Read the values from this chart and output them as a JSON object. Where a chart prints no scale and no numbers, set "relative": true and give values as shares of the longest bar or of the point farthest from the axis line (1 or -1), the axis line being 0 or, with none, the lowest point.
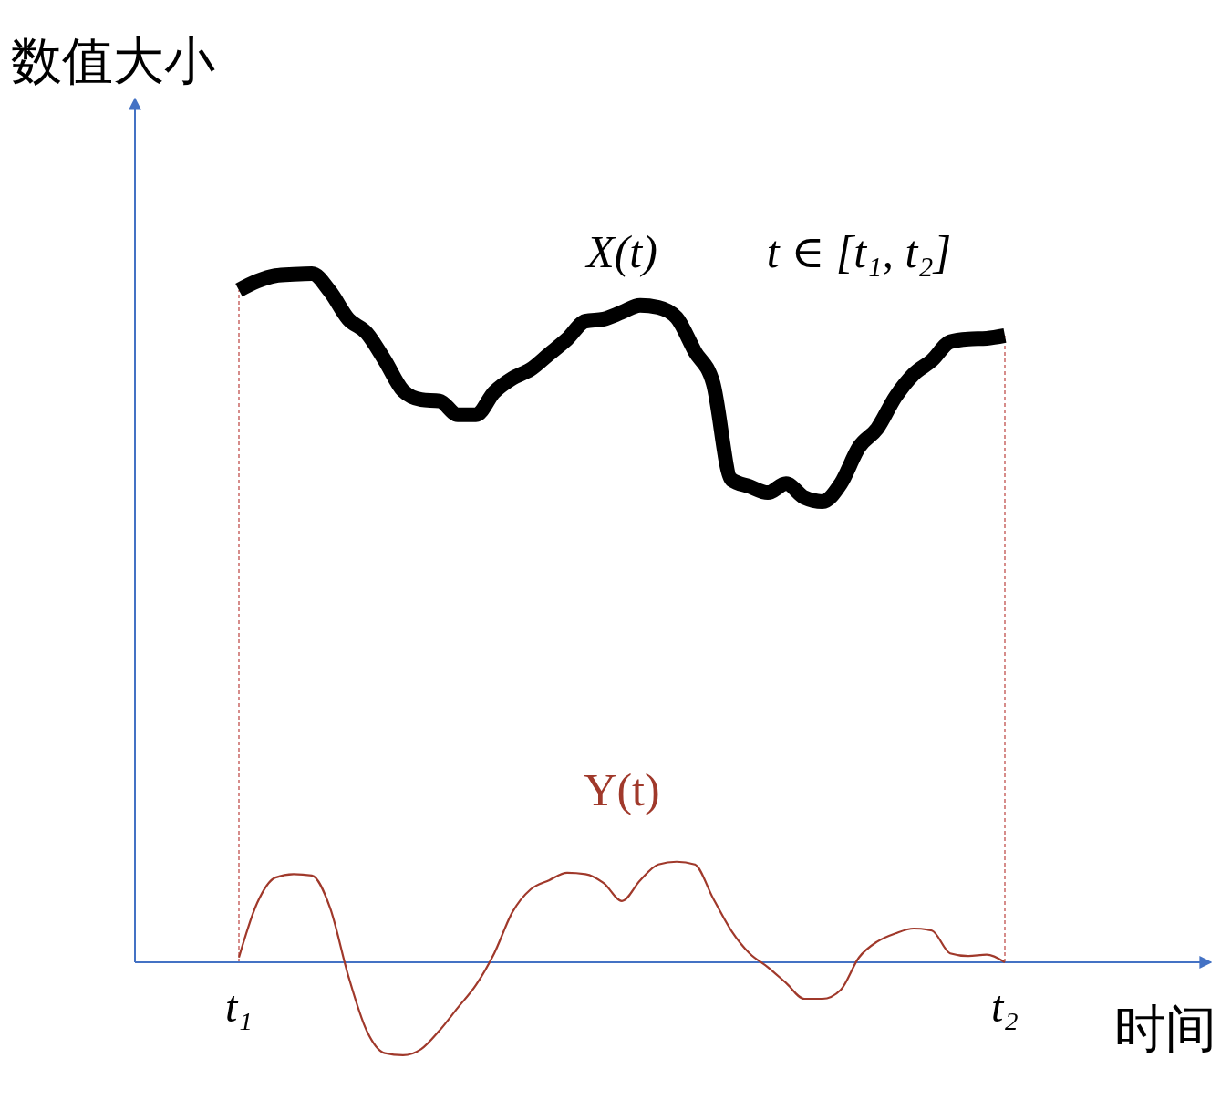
{
  "chart_data": {
    "type": "line",
    "relative": true,
    "xlabel": "时间",
    "ylabel": "数值大小",
    "categories": [
      "t₁",
      null,
      null,
      null,
      null,
      null,
      null,
      null,
      null,
      null,
      null,
      null,
      null,
      null,
      null,
      null,
      null,
      null,
      null,
      null,
      null,
      null,
      null,
      null,
      null,
      null,
      null,
      null,
      null,
      null,
      null,
      null,
      null,
      null,
      null,
      null,
      null,
      null,
      null,
      null,
      null,
      null,
      "t₂"
    ],
    "series": [
      {
        "name": "X(t)",
        "color": "#000000",
        "values": [
          0.976,
          0.989,
          0.997,
          0.999,
          1.0,
          0.974,
          0.934,
          0.914,
          0.874,
          0.83,
          0.817,
          0.815,
          0.795,
          0.795,
          0.828,
          0.848,
          0.861,
          0.883,
          0.905,
          0.931,
          0.934,
          0.944,
          0.954,
          0.951,
          0.936,
          0.887,
          0.841,
          0.701,
          0.691,
          0.682,
          0.695,
          0.675,
          0.669,
          0.695,
          0.748,
          0.775,
          0.821,
          0.854,
          0.874,
          0.901,
          0.905,
          0.906,
          0.91
        ]
      },
      {
        "name": "Y(t)",
        "color": "#a0392b",
        "values": [
          0.007,
          0.086,
          0.123,
          0.128,
          0.126,
          0.079,
          -0.02,
          -0.099,
          -0.132,
          -0.135,
          -0.126,
          -0.099,
          -0.066,
          -0.033,
          0.013,
          0.073,
          0.106,
          0.119,
          0.13,
          0.128,
          0.115,
          0.089,
          0.119,
          0.142,
          0.146,
          0.142,
          0.093,
          0.046,
          0.013,
          -0.007,
          -0.03,
          -0.053,
          -0.053,
          -0.04,
          0.007,
          0.03,
          0.042,
          0.049,
          0.046,
          0.013,
          0.009,
          0.011,
          0.0
        ]
      }
    ],
    "annotations": [
      "t ∈ [t₁, t₂]"
    ],
    "ref_lines": [
      {
        "axis": "x",
        "value": "t₁",
        "color": "#c0504d",
        "line_style": "dashed"
      },
      {
        "axis": "x",
        "value": "t₂",
        "color": "#c0504d",
        "line_style": "dashed"
      }
    ]
  }
}
